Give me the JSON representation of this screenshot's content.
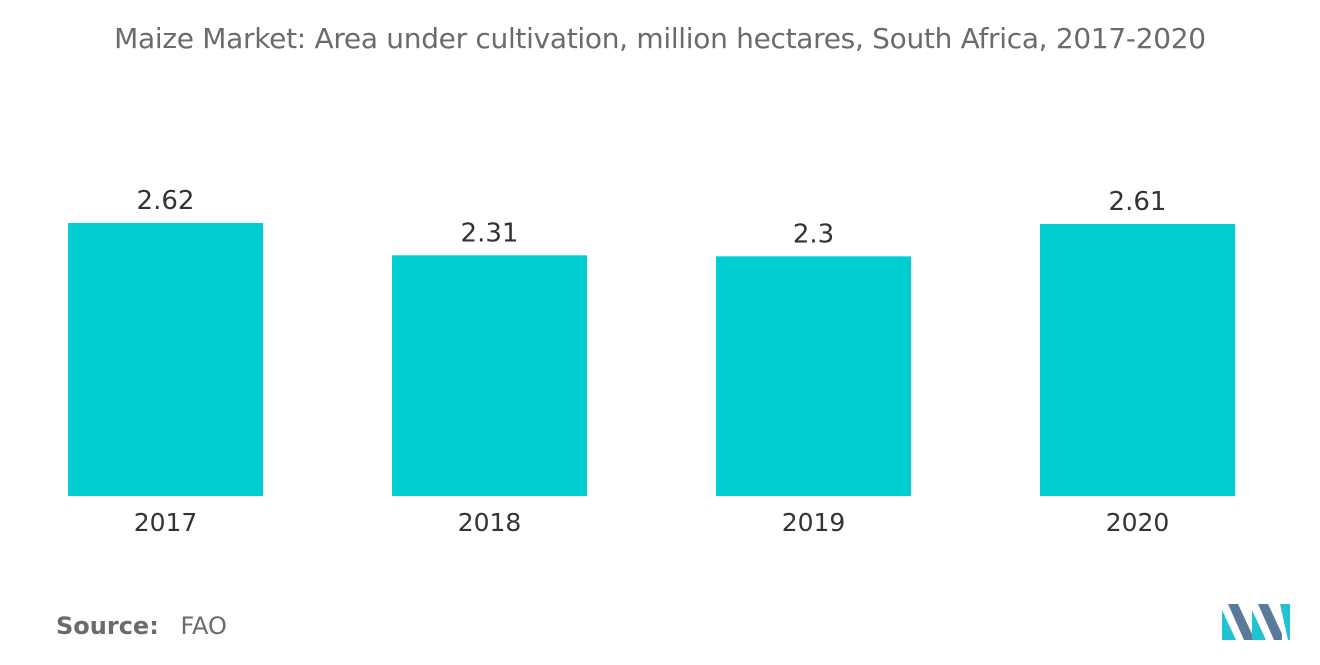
{
  "chart_data": {
    "type": "bar",
    "title": "Maize Market: Area under cultivation, million hectares, South Africa, 2017-2020",
    "categories": [
      "2017",
      "2018",
      "2019",
      "2020"
    ],
    "values": [
      2.62,
      2.31,
      2.3,
      2.61
    ],
    "value_labels": [
      "2.62",
      "2.31",
      "2.3",
      "2.61"
    ],
    "ylim": [
      0,
      2.62
    ],
    "grid": false,
    "legend": "none",
    "bar_color": "#00CED1"
  },
  "source": {
    "label": "Source:",
    "value": "FAO"
  },
  "colors": {
    "title_text": "#6b6b6b",
    "label_text": "#333333",
    "logo_dark": "#5b7a99",
    "logo_light": "#21c3d1"
  },
  "logo": {
    "icon": "mordor-intelligence-logo-icon"
  }
}
